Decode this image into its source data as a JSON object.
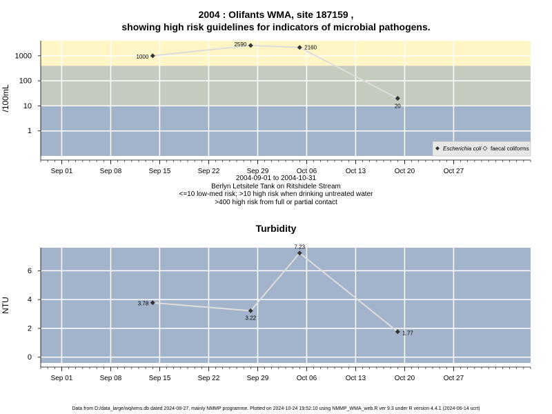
{
  "chart_data": [
    {
      "type": "line",
      "title_line1": "2004 : Olifants WMA, site 187159 ,",
      "title_line2": "showing high risk guidelines for indicators of microbial pathogens.",
      "ylabel": "/100mL",
      "yscale": "log",
      "ylim": [
        0.1,
        4000
      ],
      "yticks": [
        1,
        10,
        100,
        1000
      ],
      "ytick_labels": [
        "1",
        "10",
        "100",
        "1000"
      ],
      "x_dates": [
        "Sep 01",
        "Sep 08",
        "Sep 15",
        "Sep 22",
        "Sep 29",
        "Oct 06",
        "Oct 13",
        "Oct 20",
        "Oct 27"
      ],
      "xlim": [
        "2004-08-29",
        "2004-11-07"
      ],
      "bands": [
        {
          "from": 0.1,
          "to": 10,
          "color": "#a3b3cb"
        },
        {
          "from": 10,
          "to": 400,
          "color": "#c4ccbf"
        },
        {
          "from": 400,
          "to": 4000,
          "color": "#fff5c5"
        }
      ],
      "series": [
        {
          "name": "Escherichia coli",
          "x": [
            "2004-09-14",
            "2004-09-28",
            "2004-10-05",
            "2004-10-19"
          ],
          "y": [
            1000,
            2590,
            2160,
            20
          ],
          "labels": [
            "1000",
            "2590",
            "2160",
            "20"
          ]
        }
      ],
      "legend": {
        "position": "bottom-right",
        "entries": [
          "Escherichia coli",
          "faecal coliforms"
        ]
      },
      "caption": [
        "2004-09-01 to 2004-10-31",
        "Berlyn Letsitele Tank on Ritshidele Stream",
        "<=10 low-med risk; >10 high risk when drinking untreated water",
        ">400 high risk from full or partial contact"
      ]
    },
    {
      "type": "line",
      "title": "Turbidity",
      "ylabel": "NTU",
      "ylim": [
        -0.4,
        7.6
      ],
      "yticks": [
        0,
        2,
        4,
        6
      ],
      "ytick_labels": [
        "0",
        "2",
        "4",
        "6"
      ],
      "x_dates": [
        "Sep 01",
        "Sep 08",
        "Sep 15",
        "Sep 22",
        "Sep 29",
        "Oct 06",
        "Oct 13",
        "Oct 20",
        "Oct 27"
      ],
      "xlim": [
        "2004-08-29",
        "2004-11-07"
      ],
      "background": "#a3b3cb",
      "series": [
        {
          "name": "",
          "x": [
            "2004-09-14",
            "2004-09-28",
            "2004-10-05",
            "2004-10-19"
          ],
          "y": [
            3.78,
            3.22,
            7.23,
            1.77
          ],
          "labels": [
            "3.78",
            "3.22",
            "7.23",
            "1.77"
          ]
        }
      ]
    }
  ],
  "footer": "Data from D:/data_large/wq/wms.db dated 2024-08-27, mainly NMMP programme. Plotted on 2024-10-24 19:52:10 using NMMP_WMA_web.R ver 9.3 under R version 4.4.1 (2024-06-14 ucrt)"
}
